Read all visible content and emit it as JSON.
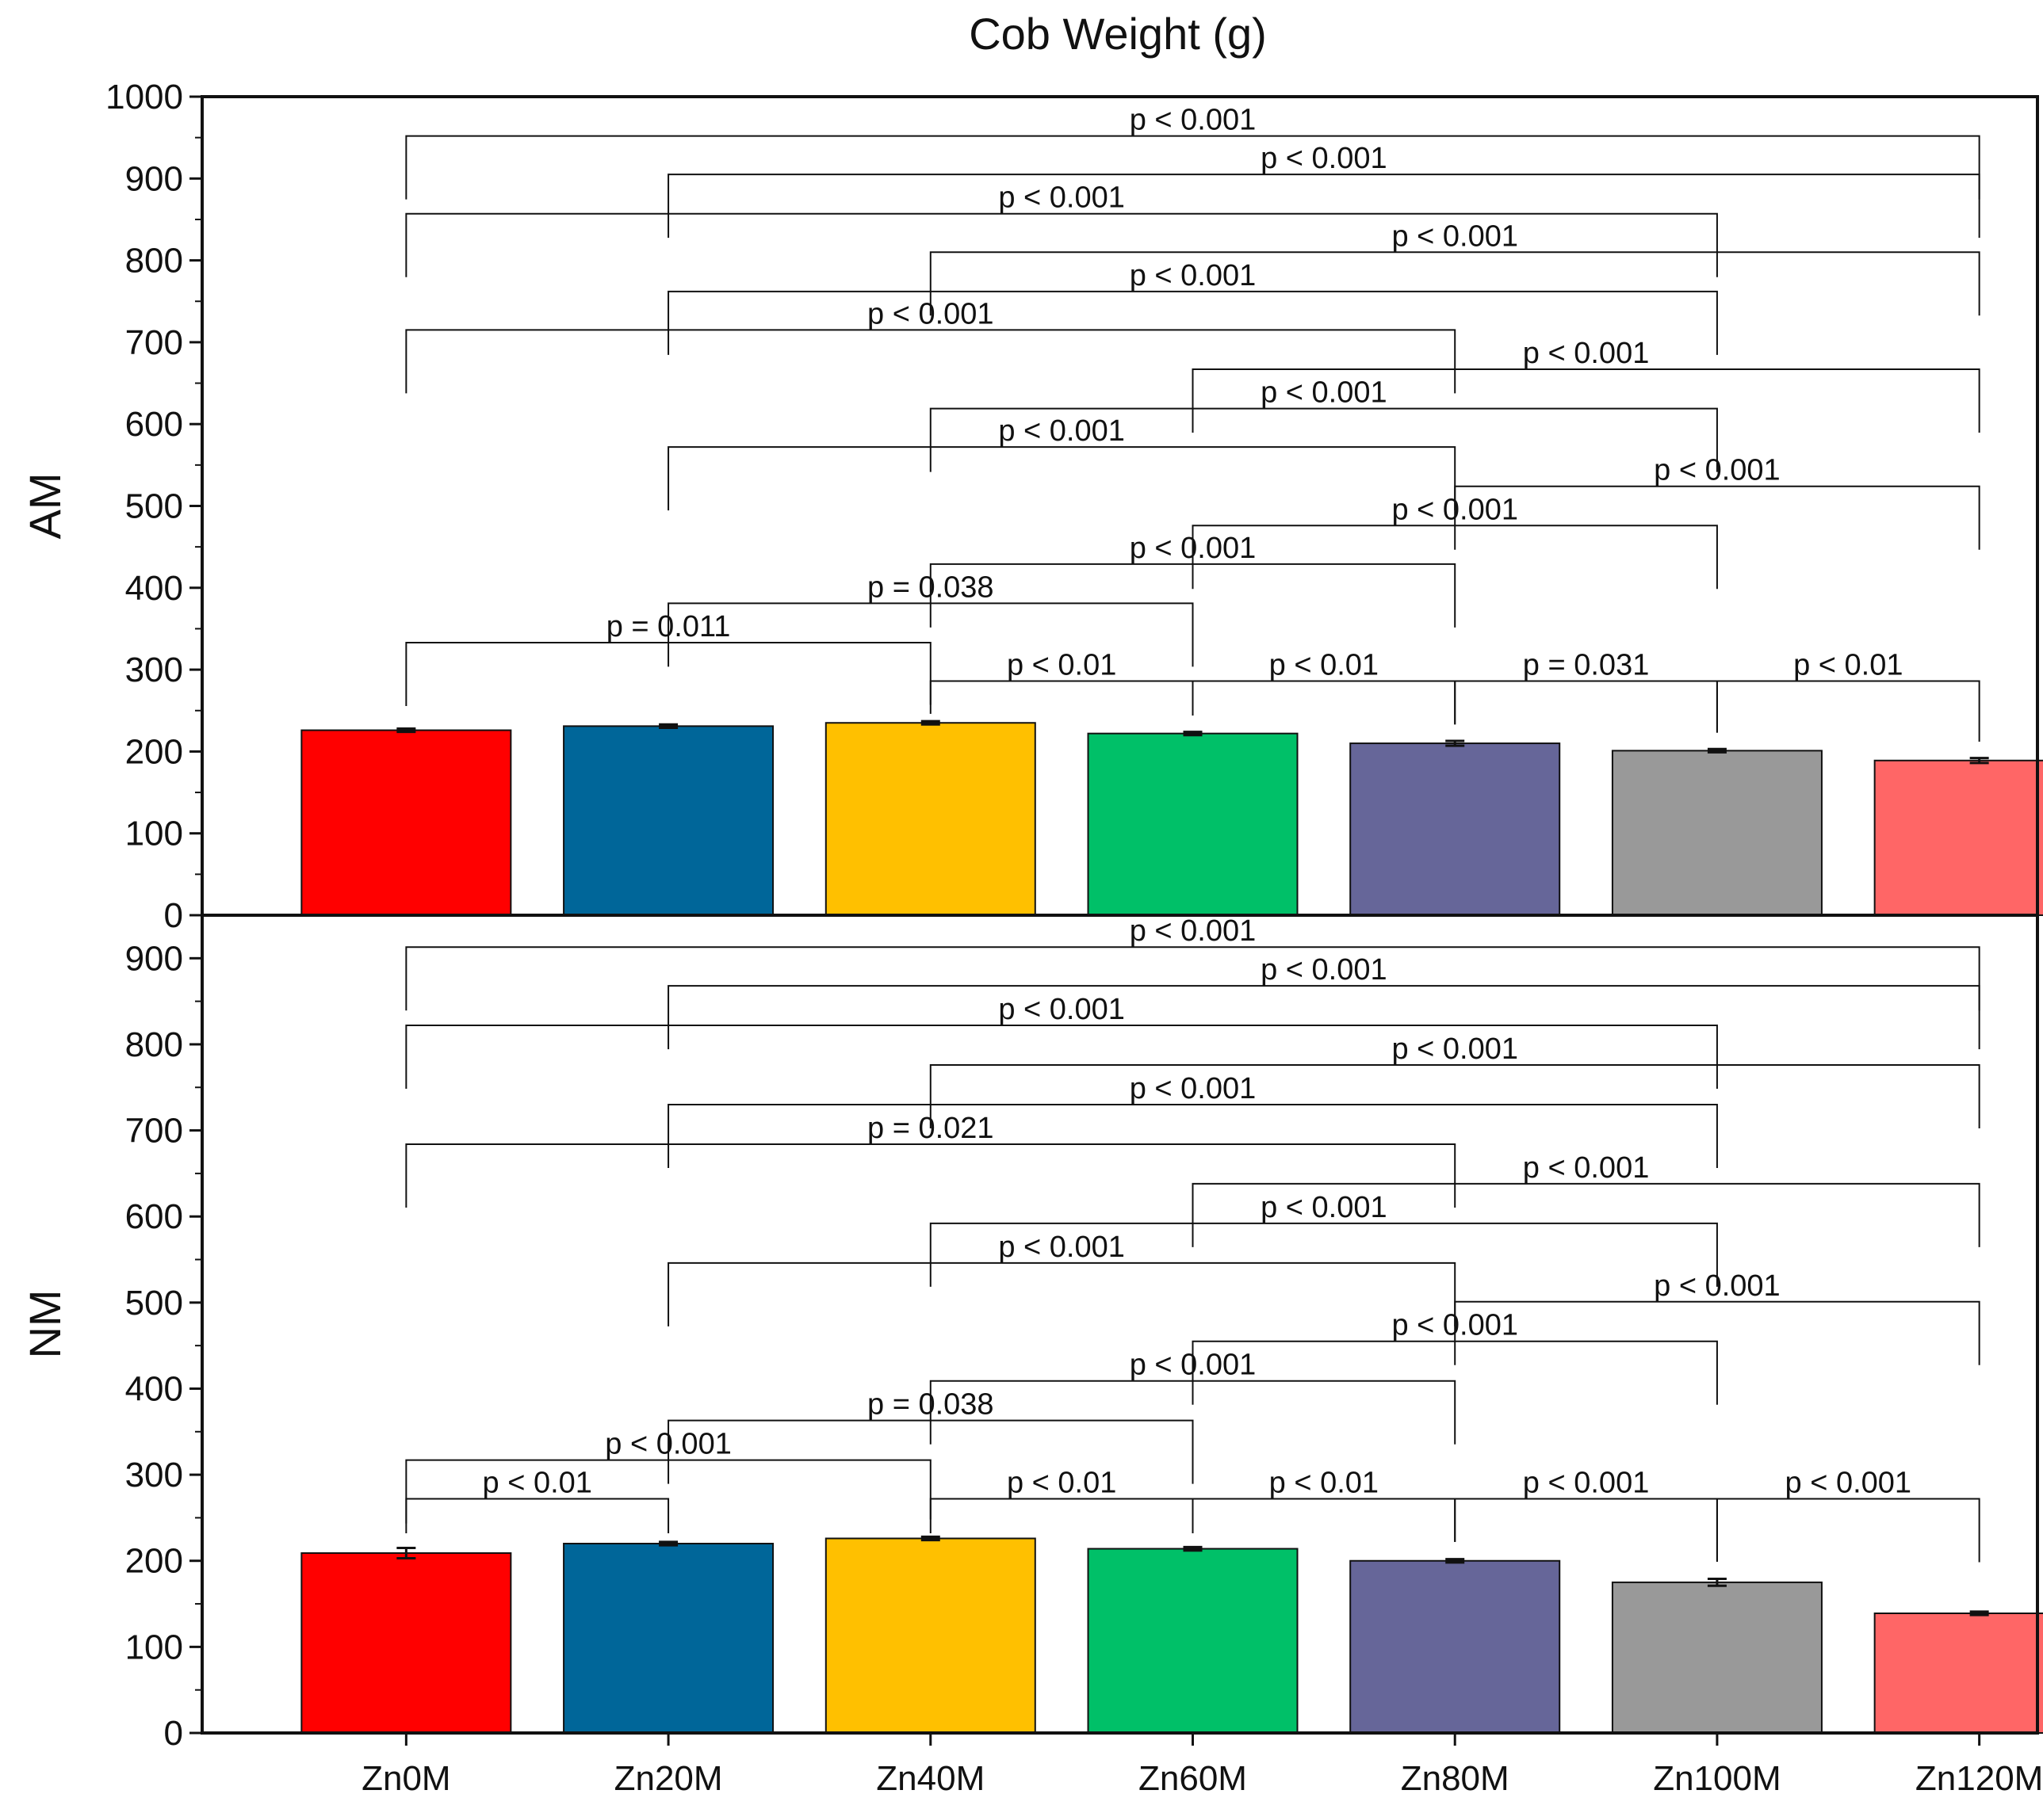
{
  "chart_data": {
    "type": "bar",
    "title": "Cob Weight (g)",
    "xlabel": "",
    "categories": [
      "Zn0M",
      "Zn20M",
      "Zn40M",
      "Zn60M",
      "Zn80M",
      "Zn100M",
      "Zn120M"
    ],
    "colors": [
      "#FF0000",
      "#006699",
      "#FFC000",
      "#00C068",
      "#666699",
      "#999999",
      "#FF6666"
    ],
    "panels": [
      {
        "ylabel": "AM",
        "ylim": [
          0,
          1000
        ],
        "yticks": [
          0,
          100,
          200,
          300,
          400,
          500,
          600,
          700,
          800,
          900,
          1000
        ],
        "values": [
          226,
          231,
          235,
          222,
          210,
          201,
          189
        ],
        "errors": [
          2,
          2,
          2,
          2,
          3,
          2,
          3
        ],
        "comparisons": [
          {
            "from": 0,
            "to": 6,
            "y": 952,
            "label": "p < 0.001"
          },
          {
            "from": 1,
            "to": 6,
            "y": 905,
            "label": "p < 0.001"
          },
          {
            "from": 0,
            "to": 5,
            "y": 857,
            "label": "p < 0.001"
          },
          {
            "from": 2,
            "to": 6,
            "y": 810,
            "label": "p < 0.001"
          },
          {
            "from": 1,
            "to": 5,
            "y": 762,
            "label": "p < 0.001"
          },
          {
            "from": 0,
            "to": 4,
            "y": 715,
            "label": "p < 0.001"
          },
          {
            "from": 3,
            "to": 6,
            "y": 667,
            "label": "p < 0.001"
          },
          {
            "from": 2,
            "to": 5,
            "y": 619,
            "label": "p < 0.001"
          },
          {
            "from": 1,
            "to": 4,
            "y": 572,
            "label": "p < 0.001"
          },
          {
            "from": 4,
            "to": 6,
            "y": 524,
            "label": "p < 0.001"
          },
          {
            "from": 3,
            "to": 5,
            "y": 476,
            "label": "p < 0.001"
          },
          {
            "from": 2,
            "to": 4,
            "y": 429,
            "label": "p < 0.001"
          },
          {
            "from": 1,
            "to": 3,
            "y": 381,
            "label": "p = 0.038"
          },
          {
            "from": 0,
            "to": 2,
            "y": 333,
            "label": "p = 0.011"
          },
          {
            "from": 2,
            "to": 3,
            "y": 286,
            "label": "p < 0.01"
          },
          {
            "from": 3,
            "to": 4,
            "y": 286,
            "label": "p < 0.01"
          },
          {
            "from": 4,
            "to": 5,
            "y": 286,
            "label": "p = 0.031"
          },
          {
            "from": 5,
            "to": 6,
            "y": 286,
            "label": "p < 0.01"
          }
        ]
      },
      {
        "ylabel": "NM",
        "ylim": [
          0,
          950
        ],
        "yticks": [
          0,
          100,
          200,
          300,
          400,
          500,
          600,
          700,
          800,
          900
        ],
        "values": [
          209,
          220,
          226,
          214,
          200,
          175,
          139
        ],
        "errors": [
          6,
          2,
          2,
          2,
          2,
          4,
          2
        ],
        "comparisons": [
          {
            "from": 0,
            "to": 6,
            "y": 913,
            "label": "p < 0.001"
          },
          {
            "from": 1,
            "to": 6,
            "y": 868,
            "label": "p < 0.001"
          },
          {
            "from": 0,
            "to": 5,
            "y": 822,
            "label": "p < 0.001"
          },
          {
            "from": 2,
            "to": 6,
            "y": 776,
            "label": "p < 0.001"
          },
          {
            "from": 1,
            "to": 5,
            "y": 730,
            "label": "p < 0.001"
          },
          {
            "from": 0,
            "to": 4,
            "y": 684,
            "label": "p = 0.021"
          },
          {
            "from": 3,
            "to": 6,
            "y": 638,
            "label": "p < 0.001"
          },
          {
            "from": 2,
            "to": 5,
            "y": 592,
            "label": "p < 0.001"
          },
          {
            "from": 1,
            "to": 4,
            "y": 546,
            "label": "p < 0.001"
          },
          {
            "from": 4,
            "to": 6,
            "y": 501,
            "label": "p < 0.001"
          },
          {
            "from": 3,
            "to": 5,
            "y": 455,
            "label": "p < 0.001"
          },
          {
            "from": 2,
            "to": 4,
            "y": 409,
            "label": "p < 0.001"
          },
          {
            "from": 1,
            "to": 3,
            "y": 363,
            "label": "p = 0.038"
          },
          {
            "from": 0,
            "to": 2,
            "y": 317,
            "label": "p < 0.001"
          },
          {
            "from": 0,
            "to": 1,
            "y": 272,
            "label": "p < 0.01"
          },
          {
            "from": 2,
            "to": 3,
            "y": 272,
            "label": "p < 0.01"
          },
          {
            "from": 3,
            "to": 4,
            "y": 272,
            "label": "p < 0.01"
          },
          {
            "from": 4,
            "to": 5,
            "y": 272,
            "label": "p < 0.001"
          },
          {
            "from": 5,
            "to": 6,
            "y": 272,
            "label": "p < 0.001"
          }
        ]
      }
    ]
  }
}
